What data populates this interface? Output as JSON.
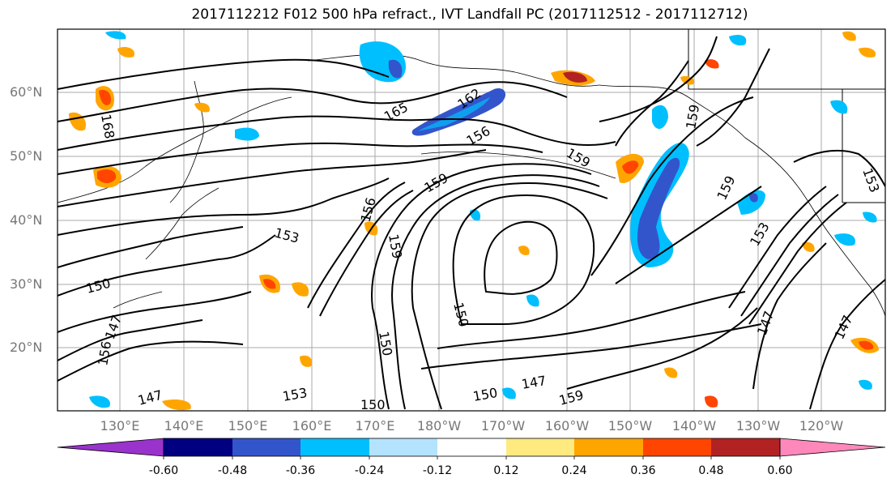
{
  "title": "2017112212 F012 500 hPa refract., IVT Landfall PC (2017112512 - 2017112712)",
  "latitude_labels": [
    "60°N",
    "50°N",
    "40°N",
    "30°N",
    "20°N"
  ],
  "longitude_labels": [
    "130°E",
    "140°E",
    "150°E",
    "160°E",
    "170°E",
    "180°W",
    "170°W",
    "160°W",
    "150°W",
    "140°W",
    "130°W",
    "120°W"
  ],
  "contour_labels": [
    "165",
    "162",
    "156",
    "159",
    "168",
    "159",
    "159",
    "153",
    "156",
    "159",
    "153",
    "150",
    "150",
    "150",
    "147",
    "156",
    "147",
    "147",
    "150",
    "159",
    "150",
    "147",
    "153",
    "147",
    "159",
    "153"
  ],
  "colorbar": {
    "ticks": [
      "-0.60",
      "-0.48",
      "-0.36",
      "-0.24",
      "-0.12",
      "0.12",
      "0.24",
      "0.36",
      "0.48",
      "0.60"
    ],
    "colors": [
      "#9933cc",
      "#000080",
      "#3355cc",
      "#00bfff",
      "#b3e3ff",
      "#ffffff",
      "#ffea80",
      "#ffa500",
      "#ff4500",
      "#b22222",
      "#ff88bb"
    ]
  }
}
